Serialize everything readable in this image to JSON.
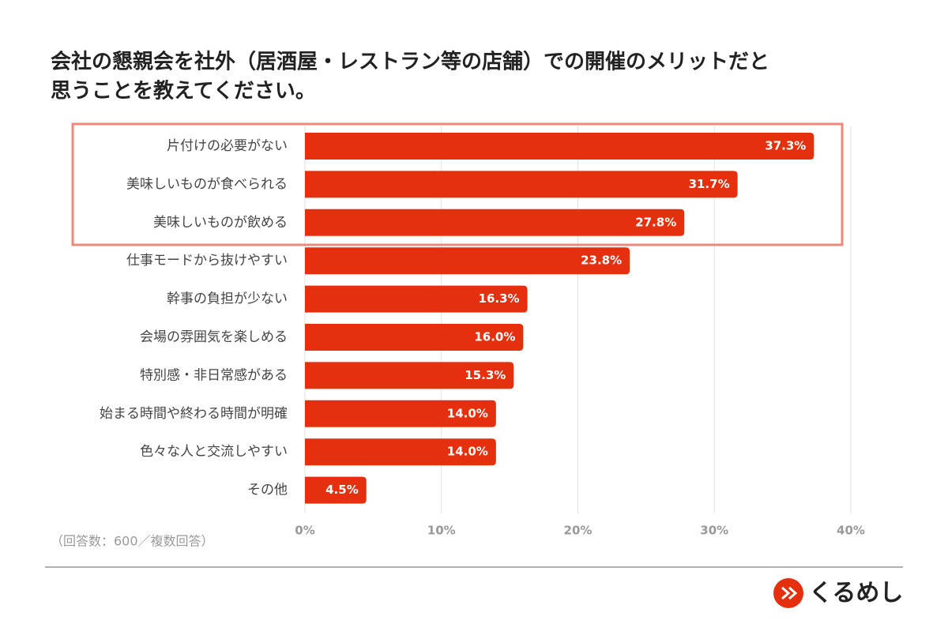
{
  "chart_data": {
    "type": "bar",
    "orientation": "horizontal",
    "title": [
      "会社の懇親会を社外（居酒屋・レストラン等の店舗）での開催のメリットだと",
      "思うことを教えてください。"
    ],
    "categories": [
      "片付けの必要がない",
      "美味しいものが食べられる",
      "美味しいものが飲める",
      "仕事モードから抜けやすい",
      "幹事の負担が少ない",
      "会場の雰囲気を楽しめる",
      "特別感・非日常感がある",
      "始まる時間や終わる時間が明確",
      "色々な人と交流しやすい",
      "その他"
    ],
    "values": [
      37.3,
      31.7,
      27.8,
      23.8,
      16.3,
      16.0,
      15.3,
      14.0,
      14.0,
      4.5
    ],
    "value_labels": [
      "37.3%",
      "31.7%",
      "27.8%",
      "23.8%",
      "16.3%",
      "16.0%",
      "15.3%",
      "14.0%",
      "14.0%",
      "4.5%"
    ],
    "color": "#e5300f",
    "xlim": [
      0,
      40
    ],
    "xticks": [
      {
        "value": 0,
        "label": "0%"
      },
      {
        "value": 10,
        "label": "10%"
      },
      {
        "value": 20,
        "label": "20%"
      },
      {
        "value": 30,
        "label": "30%"
      },
      {
        "value": 40,
        "label": "40%"
      }
    ],
    "grid": true,
    "note": "（回答数：600／複数回答）",
    "brand": "くるめし"
  }
}
